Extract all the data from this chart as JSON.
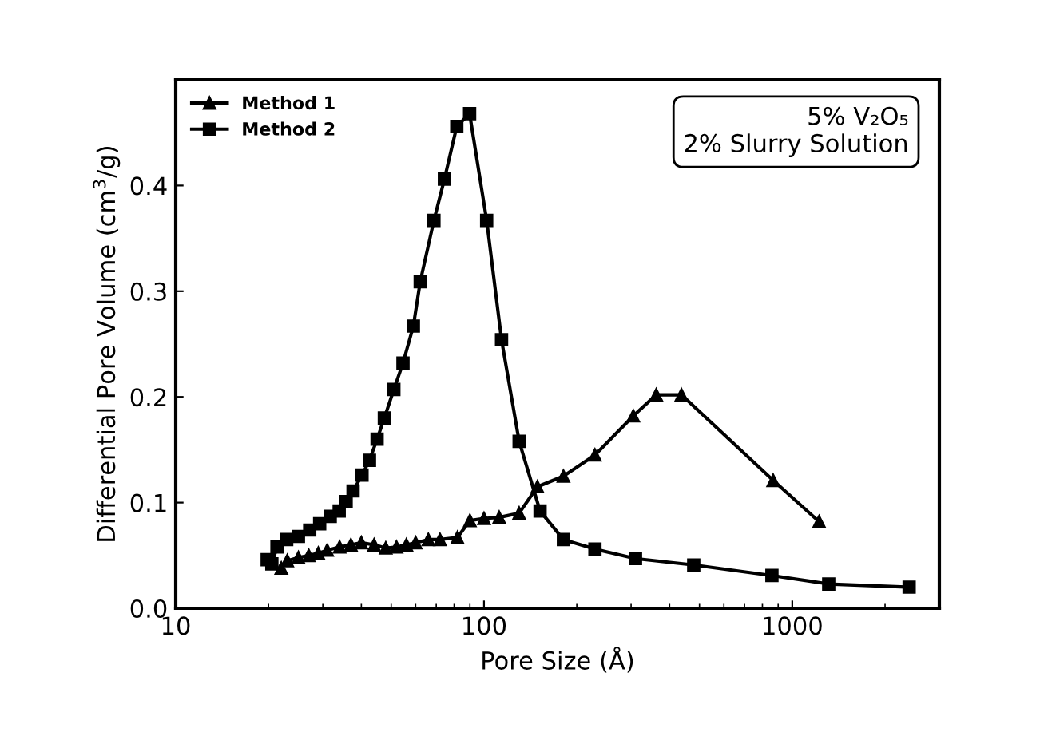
{
  "chart_data": {
    "type": "line",
    "xlabel": "Pore Size (Å)",
    "ylabel": "Differential Pore Volume (cm$^{3}$/g)",
    "annotations": [
      "5% V₂O₅\n2% Slurry Solution"
    ],
    "log": "x",
    "xlim": [
      10,
      3000
    ],
    "xticks": [
      10,
      100,
      1000
    ],
    "ylim": [
      0,
      0.5
    ],
    "yticks": [
      {
        "value": 0,
        "label": "0.0"
      },
      {
        "value": 0.1,
        "label": "0.1"
      },
      {
        "value": 0.2,
        "label": "0.2"
      },
      {
        "value": 0.3,
        "label": "0.3"
      },
      {
        "value": 0.4,
        "label": "0.4"
      }
    ],
    "grid": false,
    "legend": "top left",
    "line_style": "solid",
    "series": [
      {
        "name": "Method 1",
        "color": "#000000",
        "marker": "triangle",
        "x": [
          22,
          23,
          25,
          27,
          29,
          31,
          34,
          37,
          40,
          44,
          48,
          52,
          56,
          60,
          66,
          72,
          82,
          90,
          100,
          112,
          130,
          149,
          181,
          229,
          305,
          362,
          437,
          867,
          1222
        ],
        "values": [
          0.038,
          0.045,
          0.048,
          0.05,
          0.052,
          0.055,
          0.058,
          0.06,
          0.062,
          0.06,
          0.057,
          0.058,
          0.06,
          0.062,
          0.065,
          0.065,
          0.067,
          0.083,
          0.085,
          0.086,
          0.09,
          0.115,
          0.125,
          0.145,
          0.182,
          0.202,
          0.202,
          0.121,
          0.082
        ]
      },
      {
        "name": "Method 2",
        "color": "#000000",
        "marker": "square",
        "x": [
          19.8,
          20.5,
          21.3,
          22.9,
          25,
          27.2,
          29.3,
          31.7,
          33.9,
          35.7,
          37.6,
          40.2,
          42.5,
          45,
          47.5,
          51,
          54.6,
          59,
          62.1,
          68.8,
          74.4,
          81.6,
          89.8,
          102,
          114,
          130,
          152,
          181,
          229,
          310,
          479,
          859,
          1313,
          2394
        ],
        "values": [
          0.046,
          0.042,
          0.058,
          0.065,
          0.068,
          0.074,
          0.08,
          0.087,
          0.092,
          0.101,
          0.111,
          0.126,
          0.14,
          0.16,
          0.18,
          0.207,
          0.232,
          0.267,
          0.309,
          0.367,
          0.406,
          0.456,
          0.468,
          0.367,
          0.254,
          0.158,
          0.092,
          0.065,
          0.056,
          0.047,
          0.041,
          0.031,
          0.023,
          0.02
        ]
      }
    ]
  }
}
